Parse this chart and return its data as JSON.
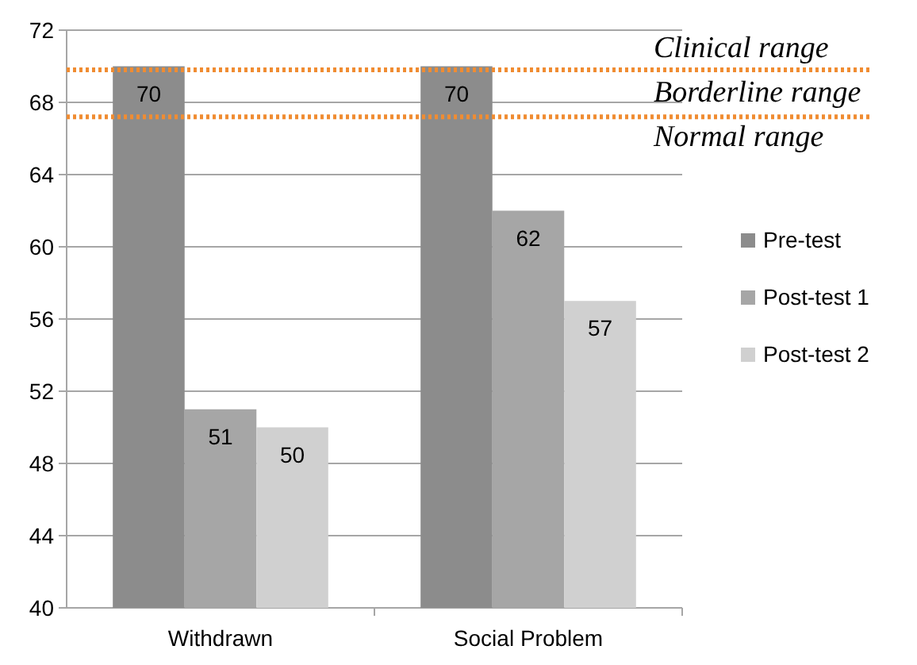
{
  "chart_data": {
    "type": "bar",
    "categories": [
      "Withdrawn",
      "Social Problem"
    ],
    "series": [
      {
        "name": "Pre-test",
        "color": "#8c8c8c",
        "values": [
          70,
          70
        ]
      },
      {
        "name": "Post-test 1",
        "color": "#a6a6a6",
        "values": [
          51,
          62
        ]
      },
      {
        "name": "Post-test 2",
        "color": "#d0d0d0",
        "values": [
          50,
          57
        ]
      }
    ],
    "ylim": [
      40,
      72
    ],
    "yticks": [
      40,
      44,
      48,
      52,
      56,
      60,
      64,
      68,
      72
    ],
    "grid": "y",
    "legend": "right",
    "data_labels": true,
    "ref_lines": [
      {
        "axis": "y",
        "value": 69.8,
        "color": "#f08c32",
        "line_style": "dotted"
      },
      {
        "axis": "y",
        "value": 67.2,
        "color": "#f08c32",
        "line_style": "dotted"
      }
    ],
    "annotations": [
      "Clinical range",
      "Borderline range",
      "Normal range"
    ]
  }
}
